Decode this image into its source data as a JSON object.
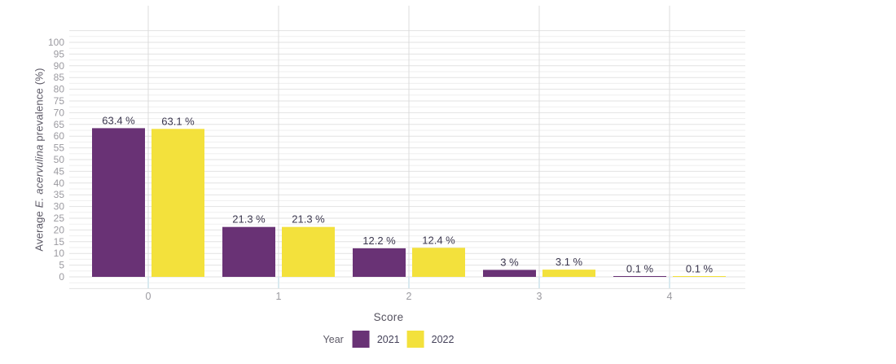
{
  "chart_data": {
    "type": "bar",
    "title": "",
    "categories": [
      "0",
      "1",
      "2",
      "3",
      "4"
    ],
    "series": [
      {
        "name": "2021",
        "color": "#693275",
        "values": [
          63.4,
          21.3,
          12.2,
          3,
          0.1
        ],
        "value_labels": [
          "63.4 %",
          "21.3 %",
          "12.2 %",
          "3 %",
          "0.1 %"
        ]
      },
      {
        "name": "2022",
        "color": "#F3E13C",
        "values": [
          63.1,
          21.3,
          12.4,
          3.1,
          0.1
        ],
        "value_labels": [
          "63.1 %",
          "21.3 %",
          "12.4 %",
          "3.1 %",
          "0.1 %"
        ]
      }
    ],
    "xlabel": "Score",
    "ylabel": "Average E. acervulina prevalence (%)",
    "ylabel_parts": {
      "prefix": "Average ",
      "italic": "E. acervulina",
      "suffix": " prevalence (%)"
    },
    "ylim": [
      0,
      100
    ],
    "yticks": [
      0,
      5,
      10,
      15,
      20,
      25,
      30,
      35,
      40,
      45,
      50,
      55,
      60,
      65,
      70,
      75,
      80,
      85,
      90,
      95,
      100
    ],
    "xticks": [
      "0",
      "1",
      "2",
      "3",
      "4"
    ],
    "axis_extent": [
      -5,
      105
    ],
    "minor_grid_step": 2.5,
    "grid": true,
    "legend": {
      "title": "Year",
      "position": "bottom",
      "entries": [
        "2021",
        "2022"
      ]
    }
  },
  "colors": {
    "background": "#ffffff",
    "bar_2021": "#693275",
    "bar_2022": "#F3E13C",
    "grid_major": "#e2e2e2",
    "grid_minor": "#efefef",
    "grid_vertical": "#dcdcdc",
    "axis_tick_text": "#9b9aa0",
    "value_label_text": "#3a364d",
    "axis_title_text": "#55525f",
    "baseline_tick": "#d9eaf0"
  }
}
